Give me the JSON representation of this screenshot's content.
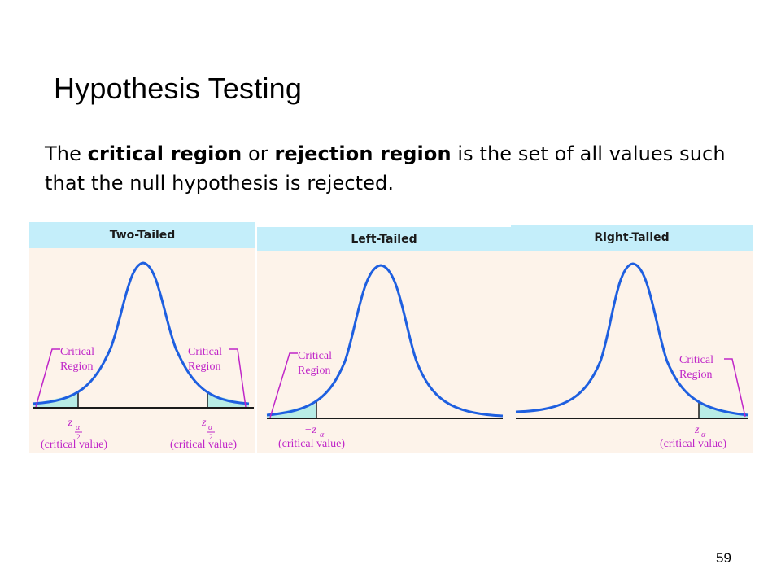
{
  "slide": {
    "title": "Hypothesis Testing",
    "intro": {
      "t1": "The ",
      "b1": "critical region",
      "t2": " or ",
      "b2": "rejection region",
      "t3": " is the set of all values such that the null hypothesis is rejected."
    },
    "page_number": "59"
  },
  "panels": {
    "two_tailed": {
      "heading": "Two-Tailed",
      "left_label": [
        "Critical",
        "Region"
      ],
      "right_label": [
        "Critical",
        "Region"
      ],
      "left_value_symbol": "−z",
      "right_value_symbol": "z",
      "subscript": "α",
      "fraction_denominator": "2",
      "value_caption": "(critical value)"
    },
    "left_tailed": {
      "heading": "Left-Tailed",
      "label": [
        "Critical",
        "Region"
      ],
      "value_symbol": "−z",
      "subscript": "α",
      "value_caption": "(critical value)"
    },
    "right_tailed": {
      "heading": "Right-Tailed",
      "label": [
        "Critical",
        "Region"
      ],
      "value_symbol": "z",
      "subscript": "α",
      "value_caption": "(critical value)"
    }
  },
  "colors": {
    "curve": "#1e5fe0",
    "shade": "#b8ece6",
    "pointer": "#c026c8",
    "axis": "#1a1a1a",
    "panel_bg": "#fdf3ea",
    "header_bg": "#c4eefa"
  }
}
